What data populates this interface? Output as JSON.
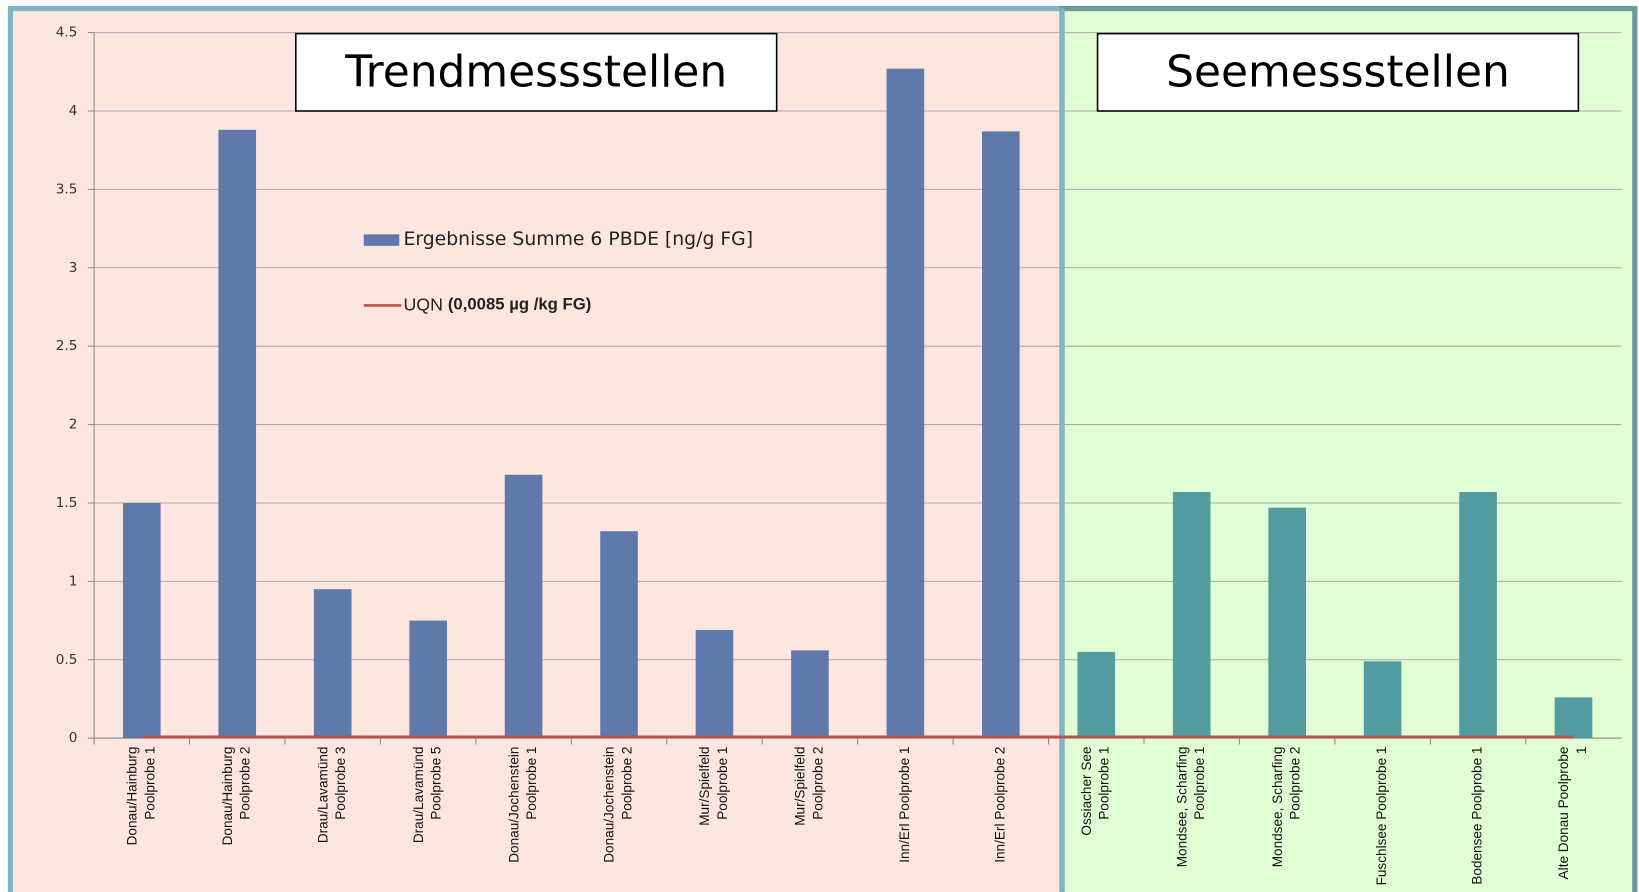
{
  "chart_data": {
    "type": "bar",
    "annotations": [
      "Trendmessstellen",
      "Seemessstellen"
    ],
    "categories": [
      [
        "Donau/Hainburg",
        "Poolprobe 1"
      ],
      [
        "Donau/Hainburg",
        "Poolprobe 2"
      ],
      [
        "Drau/Lavamünd",
        "Poolprobe 3"
      ],
      [
        "Drau/Lavamünd",
        "Poolprobe 5"
      ],
      [
        "Donau/Jochenstein",
        "Poolprobe 1"
      ],
      [
        "Donau/Jochenstein",
        "Poolprobe 2"
      ],
      [
        "Mur/Spielfeld",
        "Poolprobe 1"
      ],
      [
        "Mur/Spielfeld",
        "Poolprobe 2"
      ],
      [
        "Inn/Erl Poolprobe 1"
      ],
      [
        "Inn/Erl Poolprobe 2"
      ],
      [
        "Ossiacher See",
        "Poolprobe 1"
      ],
      [
        "Mondsee, Scharfing",
        "Poolprobe 1"
      ],
      [
        "Mondsee, Scharfing",
        "Poolprobe 2"
      ],
      [
        "Fuschlsee Poolprobe 1"
      ],
      [
        "Bodensee Poolprobe 1"
      ],
      [
        "Alte Donau Poolprobe",
        "1"
      ]
    ],
    "series": [
      {
        "name": "Ergebnisse Summe 6 PBDE [ng/g FG]",
        "color": "#6079ab",
        "colors": [
          "#6079ab",
          "#6079ab",
          "#6079ab",
          "#6079ab",
          "#6079ab",
          "#6079ab",
          "#6079ab",
          "#6079ab",
          "#6079ab",
          "#6079ab",
          "#529ba0",
          "#529ba0",
          "#529ba0",
          "#529ba0",
          "#529ba0",
          "#529ba0"
        ],
        "values": [
          1.5,
          3.88,
          0.95,
          0.75,
          1.68,
          1.32,
          0.69,
          0.56,
          4.27,
          3.87,
          0.55,
          1.57,
          1.47,
          0.49,
          1.57,
          0.26
        ]
      },
      {
        "name": "UQN",
        "detail": "(0,0085 µg /kg FG)",
        "type": "line",
        "color": "#c0504d",
        "values": [
          0.0085,
          0.0085,
          0.0085,
          0.0085,
          0.0085,
          0.0085,
          0.0085,
          0.0085,
          0.0085,
          0.0085,
          0.0085,
          0.0085,
          0.0085,
          0.0085,
          0.0085,
          0.0085
        ]
      }
    ],
    "ylim": [
      0,
      4.5
    ],
    "yticks": [
      0,
      0.5,
      1,
      1.5,
      2,
      2.5,
      3,
      3.5,
      4,
      4.5
    ],
    "grid": true
  }
}
